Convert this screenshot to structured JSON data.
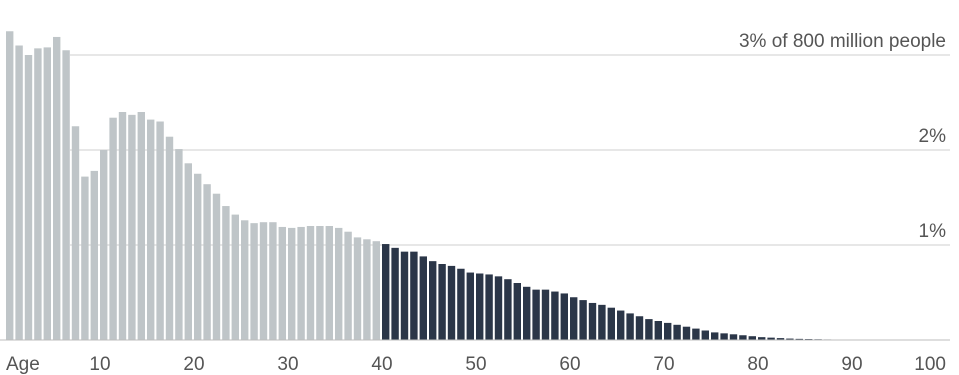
{
  "chart_data": {
    "type": "bar",
    "title": "",
    "xlabel": "Age",
    "ylabel": "",
    "x_tick_labels": [
      "10",
      "20",
      "30",
      "40",
      "50",
      "60",
      "70",
      "80",
      "90",
      "100"
    ],
    "y_tick_labels": [
      {
        "value": 1,
        "label": "1%"
      },
      {
        "value": 2,
        "label": "2%"
      },
      {
        "value": 3,
        "label": "3% of 800 million people"
      }
    ],
    "ylim": [
      0,
      3.4
    ],
    "xlim": [
      0,
      100
    ],
    "highlight_from_age": 40,
    "colors": {
      "under_40": "#bfc5c8",
      "over_40": "#2b3648",
      "grid": "#cfcfcf",
      "text": "#555555"
    },
    "series": [
      {
        "ages": [
          0,
          1,
          2,
          3,
          4,
          5,
          6,
          7,
          8,
          9,
          10,
          11,
          12,
          13,
          14,
          15,
          16,
          17,
          18,
          19,
          20,
          21,
          22,
          23,
          24,
          25,
          26,
          27,
          28,
          29,
          30,
          31,
          32,
          33,
          34,
          35,
          36,
          37,
          38,
          39,
          40,
          41,
          42,
          43,
          44,
          45,
          46,
          47,
          48,
          49,
          50,
          51,
          52,
          53,
          54,
          55,
          56,
          57,
          58,
          59,
          60,
          61,
          62,
          63,
          64,
          65,
          66,
          67,
          68,
          69,
          70,
          71,
          72,
          73,
          74,
          75,
          76,
          77,
          78,
          79,
          80,
          81,
          82,
          83,
          84,
          85,
          86,
          87,
          88,
          89,
          90,
          91,
          92,
          93,
          94,
          95,
          96,
          97,
          98
        ],
        "values": [
          3.25,
          3.1,
          3.0,
          3.07,
          3.08,
          3.19,
          3.05,
          2.25,
          1.72,
          1.78,
          2.0,
          2.34,
          2.4,
          2.37,
          2.4,
          2.32,
          2.3,
          2.14,
          2.01,
          1.86,
          1.75,
          1.64,
          1.54,
          1.41,
          1.32,
          1.26,
          1.23,
          1.24,
          1.24,
          1.19,
          1.18,
          1.19,
          1.2,
          1.2,
          1.2,
          1.18,
          1.14,
          1.08,
          1.06,
          1.04,
          1.01,
          0.97,
          0.93,
          0.93,
          0.88,
          0.83,
          0.8,
          0.78,
          0.75,
          0.71,
          0.7,
          0.69,
          0.67,
          0.64,
          0.6,
          0.56,
          0.53,
          0.53,
          0.51,
          0.49,
          0.45,
          0.42,
          0.39,
          0.37,
          0.34,
          0.31,
          0.28,
          0.25,
          0.22,
          0.2,
          0.18,
          0.16,
          0.14,
          0.12,
          0.1,
          0.08,
          0.07,
          0.06,
          0.05,
          0.04,
          0.03,
          0.025,
          0.02,
          0.015,
          0.012,
          0.01,
          0.008,
          0.006,
          0.005,
          0.004,
          0.003,
          0.002,
          0.002,
          0.001,
          0.001,
          0.001,
          0.001,
          0.001,
          0.001
        ]
      }
    ]
  }
}
